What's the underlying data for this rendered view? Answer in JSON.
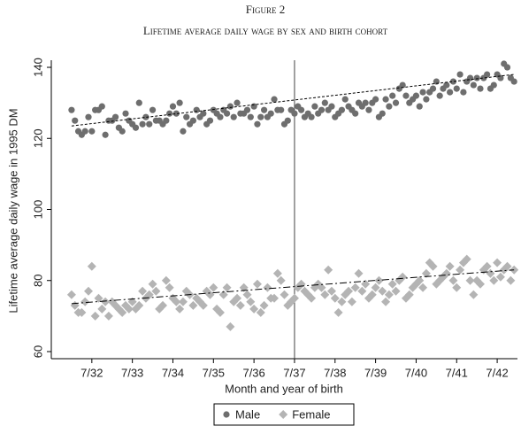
{
  "chart_data": {
    "type": "scatter",
    "title": "Figure 2",
    "subtitle": "Lifetime average daily wage by sex and birth cohort",
    "x_label": "Month and year of birth",
    "y_label": "Lifetime average daily wage in 1995 DM",
    "x": [
      -6,
      -5,
      -4,
      -3,
      -2,
      -1,
      0,
      1,
      2,
      3,
      4,
      5,
      6,
      7,
      8,
      9,
      10,
      11,
      12,
      13,
      14,
      15,
      16,
      17,
      18,
      19,
      20,
      21,
      22,
      23,
      24,
      25,
      26,
      27,
      28,
      29,
      30,
      31,
      32,
      33,
      34,
      35,
      36,
      37,
      38,
      39,
      40,
      41,
      42,
      43,
      44,
      45,
      46,
      47,
      48,
      49,
      50,
      51,
      52,
      53,
      54,
      55,
      56,
      57,
      58,
      59,
      60,
      61,
      62,
      63,
      64,
      65,
      66,
      67,
      68,
      69,
      70,
      71,
      72,
      73,
      74,
      75,
      76,
      77,
      78,
      79,
      80,
      81,
      82,
      83,
      84,
      85,
      86,
      87,
      88,
      89,
      90,
      91,
      92,
      93,
      94,
      95,
      96,
      97,
      98,
      99,
      100,
      101,
      102,
      103,
      104,
      105,
      106,
      107,
      108,
      109,
      110,
      111,
      112,
      113,
      114,
      115,
      116,
      117,
      118,
      119,
      120,
      121,
      122,
      123,
      124,
      125
    ],
    "series": [
      {
        "name": "Male",
        "color": "#6e6e6e",
        "marker": "circle",
        "fit_color": "#000000",
        "fit_dash": "3 2",
        "values": [
          128,
          125,
          122,
          121,
          122,
          126,
          122,
          128,
          128,
          129,
          121,
          125,
          125,
          126,
          123,
          122,
          127,
          125,
          124,
          123,
          130,
          124,
          126,
          124,
          128,
          125,
          125,
          124,
          125,
          127,
          129,
          127,
          130,
          122,
          126,
          124,
          125,
          128,
          126,
          127,
          124,
          125,
          128,
          127,
          126,
          128,
          127,
          129,
          126,
          130,
          127,
          127,
          128,
          126,
          129,
          124,
          126,
          128,
          126,
          127,
          131,
          128,
          128,
          124,
          125,
          128,
          127,
          129,
          128,
          126,
          127,
          126,
          129,
          127,
          128,
          130,
          128,
          129,
          126,
          127,
          128,
          131,
          129,
          128,
          127,
          130,
          129,
          130,
          128,
          130,
          131,
          126,
          127,
          131,
          129,
          132,
          130,
          134,
          135,
          132,
          130,
          131,
          132,
          129,
          133,
          131,
          133,
          134,
          136,
          132,
          134,
          135,
          133,
          136,
          134,
          138,
          133,
          136,
          137,
          135,
          137,
          134,
          137,
          138,
          134,
          135,
          138,
          137,
          141,
          140,
          137,
          136
        ],
        "fit": [
          123.5,
          138
        ]
      },
      {
        "name": "Female",
        "color": "#b4b4b4",
        "marker": "diamond",
        "fit_color": "#000000",
        "fit_dash": "8 3 2 3",
        "values": [
          76,
          73,
          71,
          71,
          74,
          77,
          84,
          70,
          75,
          72,
          74,
          70,
          74,
          73,
          72,
          71,
          73,
          72,
          74,
          72,
          73,
          77,
          75,
          76,
          79,
          77,
          72,
          73,
          80,
          78,
          75,
          74,
          72,
          74,
          77,
          76,
          73,
          75,
          74,
          73,
          77,
          76,
          78,
          72,
          71,
          76,
          78,
          67,
          74,
          75,
          73,
          78,
          76,
          74,
          72,
          79,
          71,
          73,
          78,
          75,
          75,
          82,
          80,
          76,
          73,
          74,
          75,
          78,
          79,
          77,
          76,
          75,
          78,
          79,
          78,
          76,
          83,
          77,
          75,
          71,
          74,
          76,
          77,
          74,
          78,
          82,
          77,
          79,
          75,
          76,
          78,
          80,
          77,
          74,
          76,
          79,
          77,
          80,
          81,
          75,
          76,
          78,
          79,
          80,
          78,
          82,
          85,
          84,
          79,
          80,
          81,
          82,
          84,
          80,
          78,
          83,
          85,
          86,
          80,
          76,
          80,
          79,
          83,
          84,
          82,
          80,
          85,
          81,
          83,
          84,
          80,
          83
        ],
        "fit": [
          73.5,
          83
        ]
      }
    ],
    "fit_x": [
      -6,
      125
    ],
    "vline_x": 60,
    "xlim": [
      -12,
      126
    ],
    "xticks": [
      {
        "value": 0,
        "label": "7/32"
      },
      {
        "value": 12,
        "label": "7/33"
      },
      {
        "value": 24,
        "label": "7/34"
      },
      {
        "value": 36,
        "label": "7/35"
      },
      {
        "value": 48,
        "label": "7/36"
      },
      {
        "value": 60,
        "label": "7/37"
      },
      {
        "value": 72,
        "label": "7/38"
      },
      {
        "value": 84,
        "label": "7/39"
      },
      {
        "value": 96,
        "label": "7/40"
      },
      {
        "value": 108,
        "label": "7/41"
      },
      {
        "value": 120,
        "label": "7/42"
      }
    ],
    "ylim": [
      58,
      142
    ],
    "yticks": [
      60,
      80,
      100,
      120,
      140
    ],
    "legend": "bottom"
  }
}
